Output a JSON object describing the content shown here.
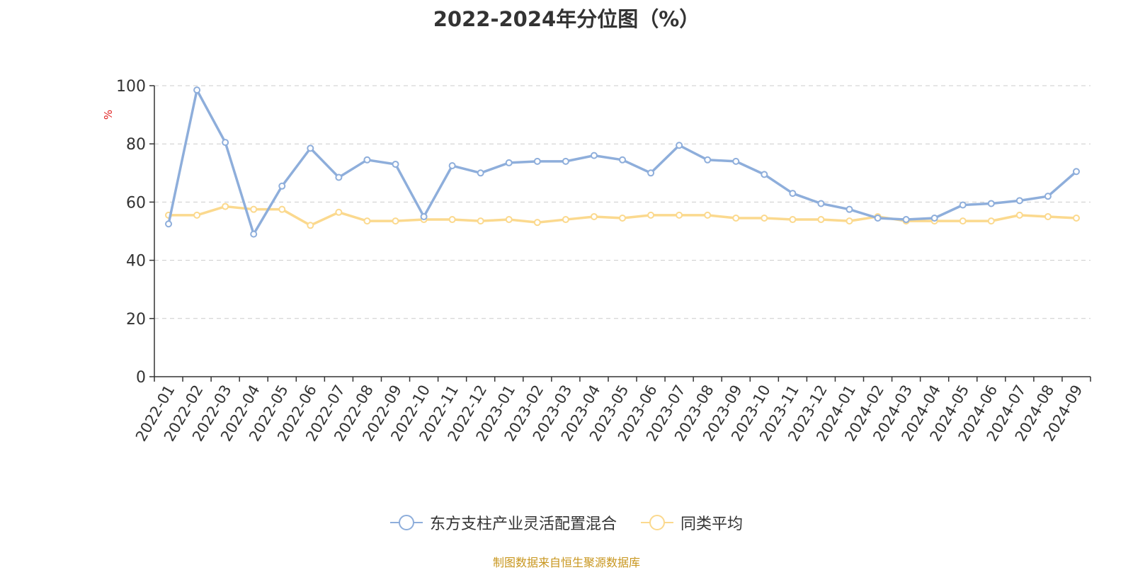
{
  "chart_data": {
    "type": "line",
    "title": "2022-2024年分位图（%）",
    "ylabel": "%",
    "xlabel": "",
    "ylim": [
      0,
      100
    ],
    "yticks": [
      0,
      20,
      40,
      60,
      80,
      100
    ],
    "grid": true,
    "legend_position": "bottom-center",
    "categories": [
      "2022-01",
      "2022-02",
      "2022-03",
      "2022-04",
      "2022-05",
      "2022-06",
      "2022-07",
      "2022-08",
      "2022-09",
      "2022-10",
      "2022-11",
      "2022-12",
      "2023-01",
      "2023-02",
      "2023-03",
      "2023-04",
      "2023-05",
      "2023-06",
      "2023-07",
      "2023-08",
      "2023-09",
      "2023-10",
      "2023-11",
      "2023-12",
      "2024-01",
      "2024-02",
      "2024-03",
      "2024-04",
      "2024-05",
      "2024-06",
      "2024-07",
      "2024-08",
      "2024-09"
    ],
    "series": [
      {
        "name": "东方支柱产业灵活配置混合",
        "color": "#8eaedb",
        "values": [
          52.5,
          98.5,
          80.5,
          49.0,
          65.5,
          78.5,
          68.5,
          74.5,
          73.0,
          55.0,
          72.5,
          70.0,
          73.5,
          74.0,
          74.0,
          76.0,
          74.5,
          70.0,
          79.5,
          74.5,
          74.0,
          69.5,
          63.0,
          59.5,
          57.5,
          54.5,
          54.0,
          54.5,
          59.0,
          59.5,
          60.5,
          62.0,
          70.5
        ]
      },
      {
        "name": "同类平均",
        "color": "#fbd98e",
        "values": [
          55.5,
          55.5,
          58.5,
          57.5,
          57.5,
          52.0,
          56.5,
          53.5,
          53.5,
          54.0,
          54.0,
          53.5,
          54.0,
          53.0,
          54.0,
          55.0,
          54.5,
          55.5,
          55.5,
          55.5,
          54.5,
          54.5,
          54.0,
          54.0,
          53.5,
          55.0,
          53.5,
          53.5,
          53.5,
          53.5,
          55.5,
          55.0,
          54.5
        ]
      }
    ],
    "source": "制图数据来自恒生聚源数据库"
  }
}
